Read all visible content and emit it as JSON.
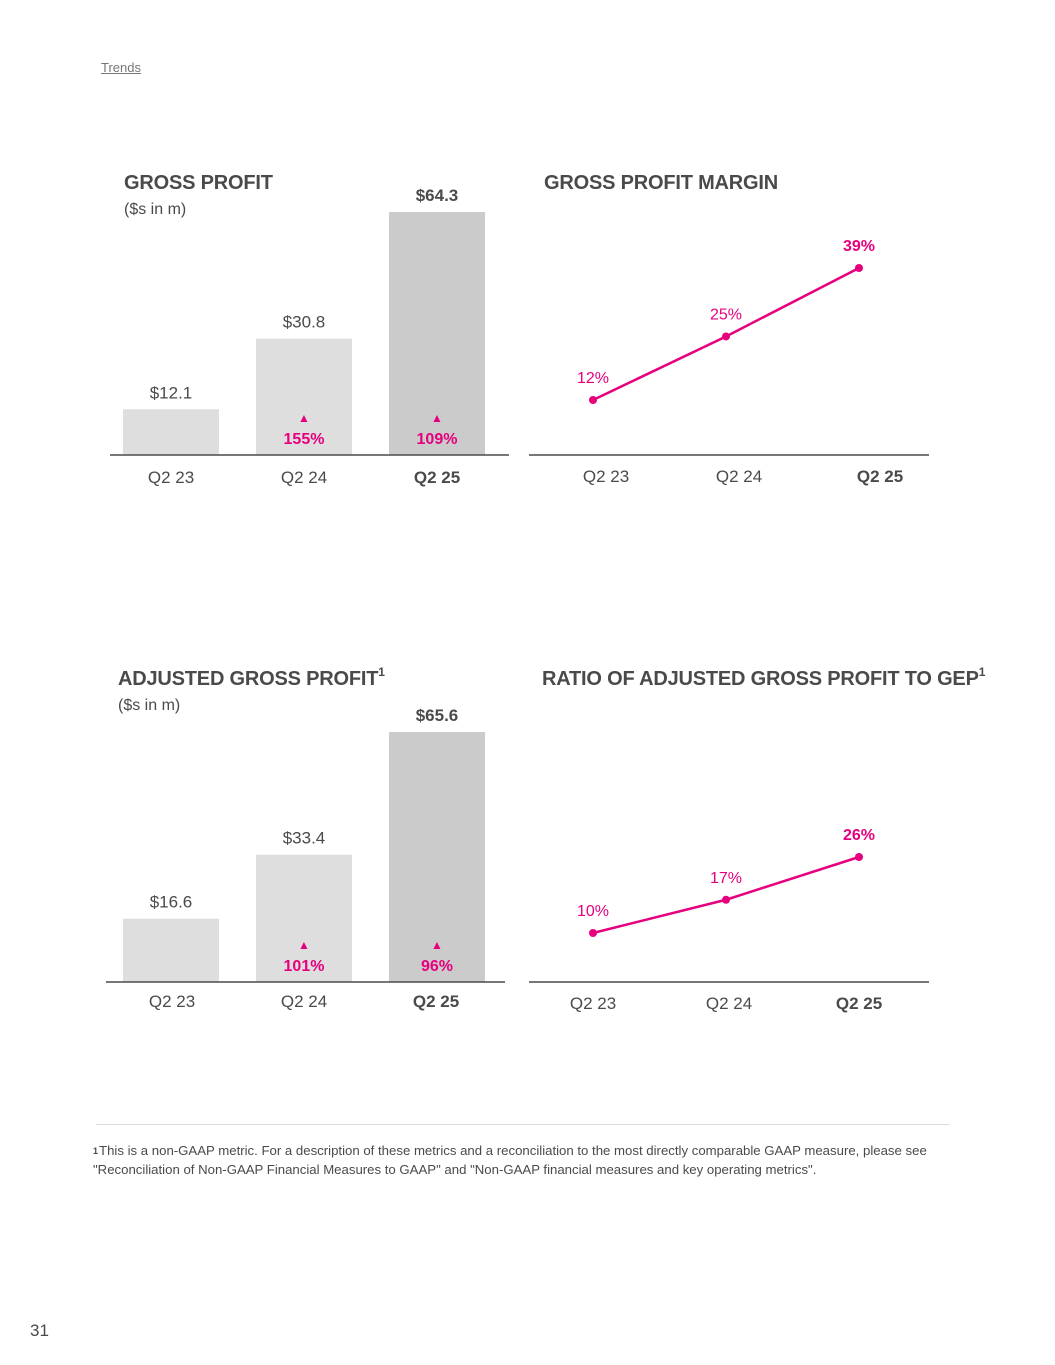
{
  "header": {
    "trends_link": "Trends"
  },
  "colors": {
    "accent": "#e6007e",
    "bar_light": "#dedede",
    "bar_dark": "#cbcbcb",
    "text": "#4a4a4a",
    "axis": "#4a4a4a"
  },
  "chart_data": [
    {
      "type": "bar",
      "title": "GROSS PROFIT",
      "title_sup": "",
      "subtitle": "($s in m)",
      "categories": [
        "Q2 23",
        "Q2 24",
        "Q2 25"
      ],
      "values": [
        12.1,
        30.8,
        64.3
      ],
      "value_labels": [
        "$12.1",
        "$30.8",
        "$64.3"
      ],
      "growth_labels": [
        "",
        "155%",
        "109%"
      ],
      "growth_marker": "▲",
      "highlight_category": "Q2 25",
      "ylim": [
        0,
        64.3
      ]
    },
    {
      "type": "line",
      "title": "GROSS PROFIT MARGIN",
      "title_sup": "",
      "categories": [
        "Q2 23",
        "Q2 24",
        "Q2 25"
      ],
      "values": [
        12,
        25,
        39
      ],
      "value_labels": [
        "12%",
        "25%",
        "39%"
      ],
      "highlight_category": "Q2 25"
    },
    {
      "type": "bar",
      "title": "ADJUSTED GROSS PROFIT",
      "title_sup": "1",
      "subtitle": "($s in m)",
      "categories": [
        "Q2 23",
        "Q2 24",
        "Q2 25"
      ],
      "values": [
        16.6,
        33.4,
        65.6
      ],
      "value_labels": [
        "$16.6",
        "$33.4",
        "$65.6"
      ],
      "growth_labels": [
        "",
        "101%",
        "96%"
      ],
      "growth_marker": "▲",
      "highlight_category": "Q2 25",
      "ylim": [
        0,
        65.6
      ]
    },
    {
      "type": "line",
      "title": "RATIO OF ADJUSTED GROSS PROFIT TO GEP",
      "title_sup": "1",
      "categories": [
        "Q2 23",
        "Q2 24",
        "Q2 25"
      ],
      "values": [
        10,
        17,
        26
      ],
      "value_labels": [
        "10%",
        "17%",
        "26%"
      ],
      "highlight_category": "Q2 25"
    }
  ],
  "footnote": {
    "marker": "1",
    "text": "This is a non-GAAP metric. For a description of these metrics and a reconciliation to the most directly comparable GAAP measure, please see \"Reconciliation of Non-GAAP Financial Measures to GAAP\" and \"Non-GAAP financial measures and key operating metrics\"."
  },
  "page_number": "31"
}
